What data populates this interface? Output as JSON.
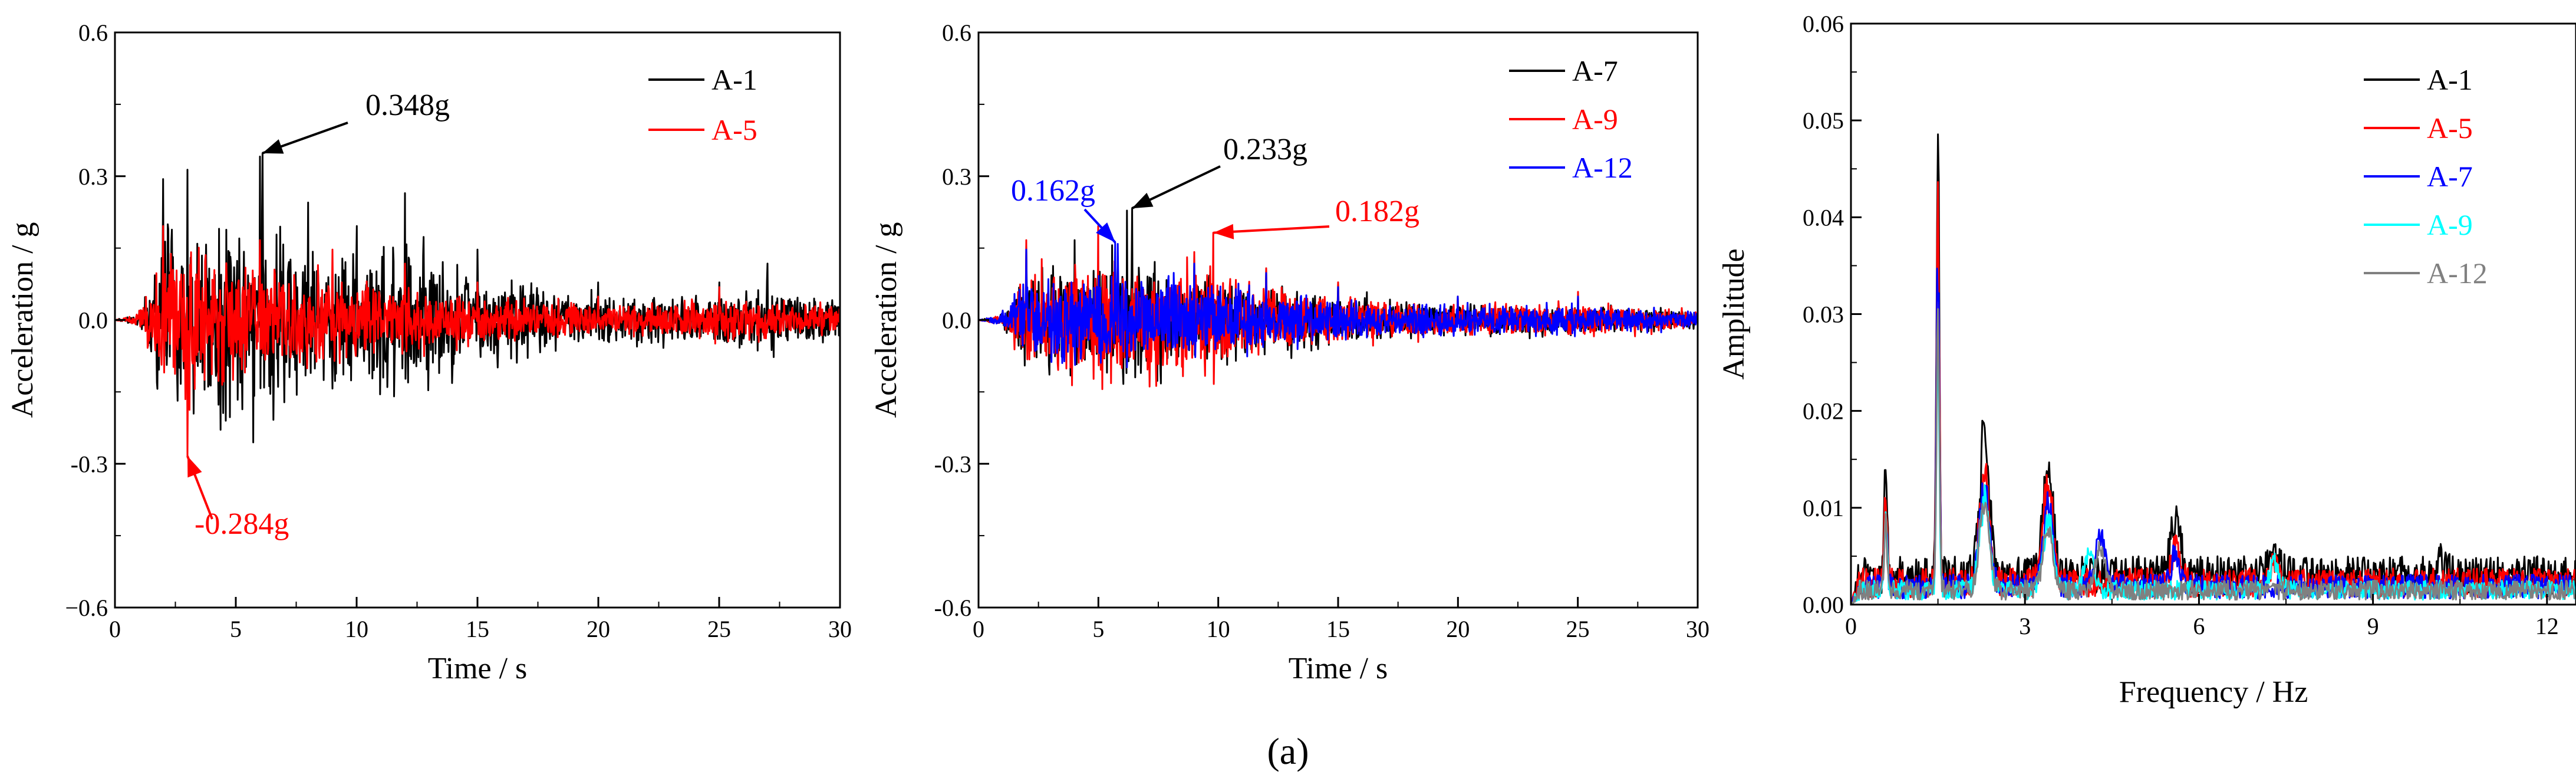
{
  "figure": {
    "caption": "(a)"
  },
  "chart_data": [
    {
      "type": "line",
      "xlabel": "Time / s",
      "ylabel": "Acceleration / g",
      "xlim": [
        0,
        30
      ],
      "ylim": [
        -0.6,
        0.6
      ],
      "xticks": [
        0,
        5,
        10,
        15,
        20,
        25,
        30
      ],
      "xtick_labels": [
        "0",
        "5",
        "10",
        "15",
        "20",
        "25",
        "30"
      ],
      "yticks": [
        -0.6,
        -0.3,
        0.0,
        0.3,
        0.6
      ],
      "ytick_labels": [
        "−0.6",
        "-0.3",
        "0.0",
        "0.3",
        "0.6"
      ],
      "grid": false,
      "legend_position": "top-right",
      "series": [
        {
          "name": "A-1",
          "color": "#000000",
          "envelope": [
            [
              0,
              0
            ],
            [
              1,
              0.02
            ],
            [
              2,
              0.3
            ],
            [
              3,
              0.32
            ],
            [
              6,
              0.348
            ],
            [
              8,
              0.25
            ],
            [
              10,
              0.2
            ],
            [
              12,
              0.27
            ],
            [
              15,
              0.15
            ],
            [
              20,
              0.08
            ],
            [
              25,
              0.08
            ],
            [
              27,
              0.12
            ],
            [
              30,
              0.06
            ]
          ]
        },
        {
          "name": "A-5",
          "color": "#ff0000",
          "envelope": [
            [
              0,
              0
            ],
            [
              1,
              0.02
            ],
            [
              2,
              0.2
            ],
            [
              3,
              0.28
            ],
            [
              6,
              0.17
            ],
            [
              9,
              0.15
            ],
            [
              12,
              0.12
            ],
            [
              15,
              0.08
            ],
            [
              20,
              0.05
            ],
            [
              25,
              0.07
            ],
            [
              30,
              0.05
            ]
          ]
        }
      ],
      "annotations": [
        {
          "text": "0.348g",
          "color": "#000000",
          "x": 6.1,
          "y": 0.348
        },
        {
          "text": "-0.284g",
          "color": "#ff0000",
          "x": 3.0,
          "y": -0.284
        }
      ]
    },
    {
      "type": "line",
      "xlabel": "Time / s",
      "ylabel": "Acceleration / g",
      "xlim": [
        0,
        30
      ],
      "ylim": [
        -0.6,
        0.6
      ],
      "xticks": [
        0,
        5,
        10,
        15,
        20,
        25,
        30
      ],
      "xtick_labels": [
        "0",
        "5",
        "10",
        "15",
        "20",
        "25",
        "30"
      ],
      "yticks": [
        -0.6,
        -0.3,
        0.0,
        0.3,
        0.6
      ],
      "ytick_labels": [
        "-0.6",
        "-0.3",
        "0.0",
        "0.3",
        "0.6"
      ],
      "grid": false,
      "legend_position": "top-right",
      "series": [
        {
          "name": "A-7",
          "color": "#000000",
          "envelope": [
            [
              0,
              0
            ],
            [
              1,
              0.02
            ],
            [
              2,
              0.16
            ],
            [
              4,
              0.17
            ],
            [
              6.2,
              0.233
            ],
            [
              9,
              0.14
            ],
            [
              12,
              0.11
            ],
            [
              15,
              0.08
            ],
            [
              20,
              0.05
            ],
            [
              25,
              0.05
            ],
            [
              30,
              0.03
            ]
          ]
        },
        {
          "name": "A-9",
          "color": "#ff0000",
          "envelope": [
            [
              0,
              0
            ],
            [
              1,
              0.02
            ],
            [
              2,
              0.17
            ],
            [
              5,
              0.2
            ],
            [
              9.8,
              0.182
            ],
            [
              12,
              0.11
            ],
            [
              15,
              0.08
            ],
            [
              20,
              0.05
            ],
            [
              25,
              0.06
            ],
            [
              30,
              0.03
            ]
          ]
        },
        {
          "name": "A-12",
          "color": "#0000ff",
          "envelope": [
            [
              0,
              0
            ],
            [
              1,
              0.02
            ],
            [
              2,
              0.15
            ],
            [
              5.8,
              0.162
            ],
            [
              9,
              0.12
            ],
            [
              12,
              0.1
            ],
            [
              15,
              0.07
            ],
            [
              20,
              0.05
            ],
            [
              25,
              0.05
            ],
            [
              30,
              0.03
            ]
          ]
        }
      ],
      "annotations": [
        {
          "text": "0.162g",
          "color": "#0000ff",
          "x": 5.7,
          "y": 0.162
        },
        {
          "text": "0.233g",
          "color": "#000000",
          "x": 6.4,
          "y": 0.233
        },
        {
          "text": "0.182g",
          "color": "#ff0000",
          "x": 9.8,
          "y": 0.182
        }
      ]
    },
    {
      "type": "line",
      "xlabel": "Frequency / Hz",
      "ylabel": "Amplitude",
      "xlim": [
        0,
        12.5
      ],
      "ylim": [
        0,
        0.06
      ],
      "xticks": [
        0,
        3,
        6,
        9,
        12
      ],
      "xtick_labels": [
        "0",
        "3",
        "6",
        "9",
        "12"
      ],
      "yticks": [
        0,
        0.01,
        0.02,
        0.03,
        0.04,
        0.05,
        0.06
      ],
      "ytick_labels": [
        "0.00",
        "0.01",
        "0.02",
        "0.03",
        "0.04",
        "0.05",
        "0.06"
      ],
      "grid": false,
      "legend_position": "top-right",
      "series": [
        {
          "name": "A-1",
          "color": "#000000",
          "peaks": [
            [
              0.6,
              0.017
            ],
            [
              1.5,
              0.0535
            ],
            [
              2.3,
              0.0195
            ],
            [
              3.4,
              0.0165
            ],
            [
              5.6,
              0.01
            ],
            [
              7.3,
              0.0065
            ],
            [
              10.2,
              0.006
            ]
          ],
          "baseline": 0.004
        },
        {
          "name": "A-5",
          "color": "#ff0000",
          "peaks": [
            [
              0.6,
              0.0125
            ],
            [
              1.5,
              0.045
            ],
            [
              2.3,
              0.015
            ],
            [
              3.4,
              0.014
            ],
            [
              5.6,
              0.007
            ],
            [
              7.3,
              0.005
            ]
          ],
          "baseline": 0.003
        },
        {
          "name": "A-7",
          "color": "#0000ff",
          "peaks": [
            [
              0.6,
              0.011
            ],
            [
              1.5,
              0.04
            ],
            [
              2.3,
              0.014
            ],
            [
              3.4,
              0.012
            ],
            [
              4.3,
              0.008
            ],
            [
              5.6,
              0.006
            ]
          ],
          "baseline": 0.0025
        },
        {
          "name": "A-9",
          "color": "#00ffff",
          "peaks": [
            [
              0.6,
              0.01
            ],
            [
              1.5,
              0.03
            ],
            [
              2.3,
              0.012
            ],
            [
              3.4,
              0.01
            ],
            [
              4.1,
              0.006
            ],
            [
              7.3,
              0.005
            ]
          ],
          "baseline": 0.002
        },
        {
          "name": "A-12",
          "color": "#808080",
          "peaks": [
            [
              0.6,
              0.0095
            ],
            [
              1.5,
              0.036
            ],
            [
              2.3,
              0.012
            ],
            [
              3.4,
              0.009
            ],
            [
              4.3,
              0.007
            ]
          ],
          "baseline": 0.002
        }
      ],
      "annotations": []
    }
  ]
}
